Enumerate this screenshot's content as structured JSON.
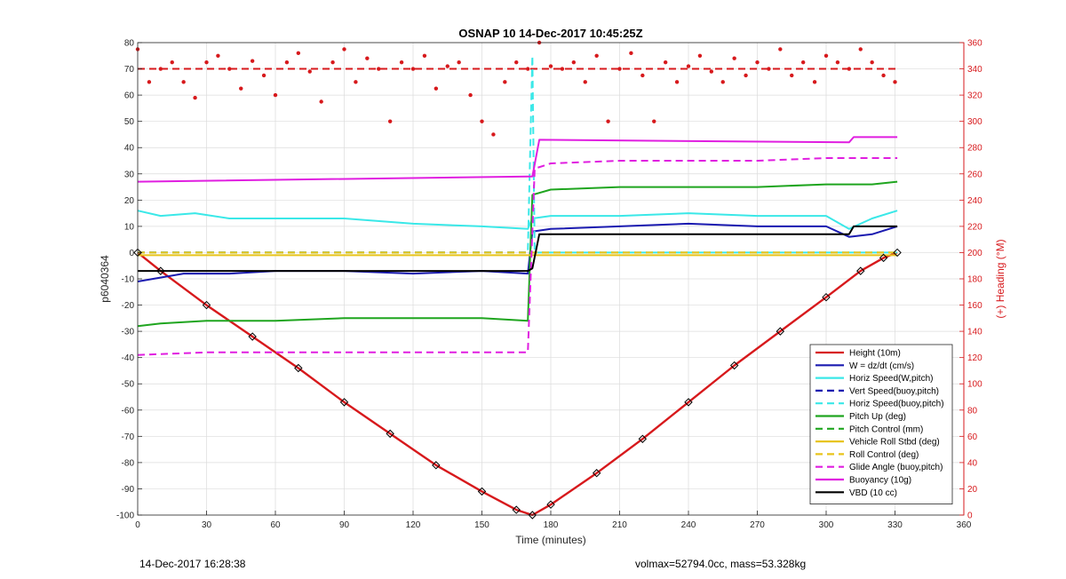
{
  "chart_data": {
    "type": "line",
    "title": "OSNAP 10 14-Dec-2017 10:45:25Z",
    "xlabel": "Time (minutes)",
    "ylabel": "p6040364",
    "y2label": "(+) Heading (°M)",
    "xlim": [
      0,
      360
    ],
    "ylim": [
      -100,
      80
    ],
    "y2lim": [
      0,
      360
    ],
    "xticks": [
      0,
      30,
      60,
      90,
      120,
      150,
      180,
      210,
      240,
      270,
      300,
      330,
      360
    ],
    "yticks": [
      -100,
      -90,
      -80,
      -70,
      -60,
      -50,
      -40,
      -30,
      -20,
      -10,
      0,
      10,
      20,
      30,
      40,
      50,
      60,
      70,
      80
    ],
    "y2ticks": [
      0,
      20,
      40,
      60,
      80,
      100,
      120,
      140,
      160,
      180,
      200,
      220,
      240,
      260,
      280,
      300,
      320,
      340,
      360
    ],
    "grid": true,
    "legend_position": "bottom-right",
    "series": [
      {
        "name": "Height (10m)",
        "color": "#d7191c",
        "style": "solid",
        "x": [
          0,
          10,
          30,
          50,
          70,
          90,
          110,
          130,
          150,
          165,
          172,
          180,
          200,
          220,
          240,
          260,
          280,
          300,
          315,
          325,
          331
        ],
        "y": [
          0,
          -7,
          -20,
          -32,
          -44,
          -57,
          -69,
          -81,
          -91,
          -98,
          -100,
          -96,
          -84,
          -71,
          -57,
          -43,
          -30,
          -17,
          -7,
          -2,
          0
        ]
      },
      {
        "name": "W = dz/dt (cm/s)",
        "color": "#1a1ab0",
        "style": "solid",
        "x": [
          0,
          20,
          40,
          60,
          90,
          120,
          150,
          170,
          172,
          180,
          210,
          240,
          270,
          300,
          310,
          320,
          331
        ],
        "y": [
          -11,
          -8,
          -8,
          -7,
          -7,
          -8,
          -7,
          -8,
          8,
          9,
          10,
          11,
          10,
          10,
          6,
          7,
          10
        ]
      },
      {
        "name": "Horiz Speed(W,pitch)",
        "color": "#3ae8e8",
        "style": "solid",
        "x": [
          0,
          10,
          25,
          40,
          60,
          90,
          120,
          150,
          170,
          172,
          180,
          210,
          240,
          270,
          300,
          310,
          320,
          331
        ],
        "y": [
          16,
          14,
          15,
          13,
          13,
          13,
          11,
          10,
          9,
          13,
          14,
          14,
          15,
          14,
          14,
          9,
          13,
          16
        ]
      },
      {
        "name": "Vert Speed(buoy,pitch)",
        "color": "#1a1ab0",
        "style": "dash",
        "x": [
          0,
          172
        ],
        "y": [
          0,
          0
        ]
      },
      {
        "name": "Horiz Speed(buoy,pitch)",
        "color": "#3ae8e8",
        "style": "dash",
        "x": [
          0,
          170,
          172,
          173,
          331
        ],
        "y": [
          0,
          0,
          75,
          0,
          0
        ]
      },
      {
        "name": "Pitch Up (deg)",
        "color": "#1fa51f",
        "style": "solid",
        "x": [
          0,
          10,
          30,
          60,
          90,
          120,
          150,
          170,
          172,
          180,
          210,
          240,
          270,
          300,
          320,
          331
        ],
        "y": [
          -28,
          -27,
          -26,
          -26,
          -25,
          -25,
          -25,
          -26,
          22,
          24,
          25,
          25,
          25,
          26,
          26,
          27
        ]
      },
      {
        "name": "Pitch Control (mm)",
        "color": "#1fa51f",
        "style": "dash",
        "x": [
          0,
          331
        ],
        "y": [
          0,
          0
        ]
      },
      {
        "name": "Vehicle Roll Stbd (deg)",
        "color": "#e8c41c",
        "style": "solid",
        "x": [
          0,
          30,
          60,
          90,
          120,
          150,
          170,
          180,
          210,
          240,
          270,
          300,
          331
        ],
        "y": [
          -1,
          -1,
          -1,
          -1,
          -1,
          -1,
          -1,
          -1,
          -1,
          -1,
          -1,
          -1,
          -1
        ]
      },
      {
        "name": "Roll Control (deg)",
        "color": "#e8c41c",
        "style": "dash",
        "x": [
          0,
          331
        ],
        "y": [
          0,
          0
        ]
      },
      {
        "name": "Glide Angle (buoy,pitch)",
        "color": "#e01ee0",
        "style": "dash",
        "x": [
          0,
          30,
          60,
          90,
          120,
          150,
          170,
          173,
          180,
          210,
          240,
          270,
          300,
          331
        ],
        "y": [
          -39,
          -38,
          -38,
          -38,
          -38,
          -38,
          -38,
          32,
          34,
          35,
          35,
          35,
          36,
          36
        ]
      },
      {
        "name": "Buoyancy (10g)",
        "color": "#e01ee0",
        "style": "solid",
        "x": [
          0,
          170,
          172,
          175,
          310,
          312,
          331
        ],
        "y": [
          27,
          29,
          29,
          43,
          42,
          44,
          44
        ]
      },
      {
        "name": "VBD (10 cc)",
        "color": "#000000",
        "style": "solid",
        "x": [
          0,
          170,
          172,
          175,
          310,
          312,
          331
        ],
        "y": [
          -7,
          -7,
          -6,
          7,
          7,
          10,
          10
        ]
      }
    ],
    "heading": {
      "name": "Heading",
      "color": "#d7191c",
      "target": 340,
      "x": [
        0,
        5,
        10,
        15,
        20,
        25,
        30,
        35,
        40,
        45,
        50,
        55,
        60,
        65,
        70,
        75,
        80,
        85,
        90,
        95,
        100,
        105,
        110,
        115,
        120,
        125,
        130,
        135,
        140,
        145,
        150,
        155,
        160,
        165,
        170,
        175,
        180,
        185,
        190,
        195,
        200,
        205,
        210,
        215,
        220,
        225,
        230,
        235,
        240,
        245,
        250,
        255,
        260,
        265,
        270,
        275,
        280,
        285,
        290,
        295,
        300,
        305,
        310,
        315,
        320,
        325,
        330
      ],
      "y": [
        355,
        330,
        340,
        345,
        330,
        318,
        345,
        350,
        340,
        325,
        346,
        335,
        320,
        345,
        352,
        338,
        315,
        345,
        355,
        330,
        348,
        340,
        300,
        345,
        340,
        350,
        325,
        342,
        345,
        320,
        300,
        290,
        330,
        345,
        340,
        360,
        342,
        340,
        345,
        330,
        350,
        300,
        340,
        352,
        335,
        300,
        345,
        330,
        342,
        350,
        338,
        330,
        348,
        335,
        345,
        340,
        355,
        335,
        345,
        330,
        350,
        345,
        340,
        355,
        345,
        335,
        330
      ]
    }
  },
  "footer_left": "14-Dec-2017 16:28:38",
  "footer_right": "volmax=52794.0cc, mass=53.328kg"
}
